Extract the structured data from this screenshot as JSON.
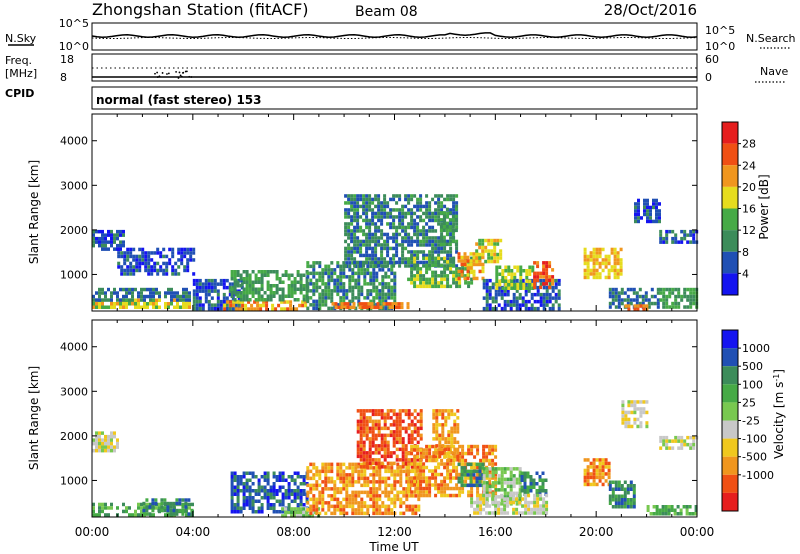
{
  "header": {
    "station": "Zhongshan Station (fitACF)",
    "beam": "Beam 08",
    "date": "28/Oct/2016"
  },
  "top_panels": {
    "nsky_label": "N.Sky",
    "nsky_ticks": [
      "10^5",
      "10^0"
    ],
    "nsearch_ticks": [
      "10^5",
      "10^0"
    ],
    "nsearch_label": "N.Search",
    "freq_label": "Freq.",
    "freq_unit": "[MHz]",
    "freq_ticks": [
      "18",
      "8"
    ],
    "nave_ticks": [
      "60",
      "0"
    ],
    "nave_label": "Nave",
    "cpid_label": "CPID",
    "cpid_text": "normal (fast stereo) 153"
  },
  "colors": {
    "power": [
      "#1414f0",
      "#2050b4",
      "#3c8c5a",
      "#46aa46",
      "#e6dc1e",
      "#f0961e",
      "#f05014",
      "#e61e1e"
    ],
    "velocity": [
      "#e61e1e",
      "#f05014",
      "#f0961e",
      "#f0c81e",
      "#c8c8c8",
      "#78c850",
      "#46aa46",
      "#3c8c5a",
      "#2050b4",
      "#1414f0"
    ]
  },
  "chart_data": [
    {
      "type": "heatmap",
      "panel": "power",
      "ylabel": "Slant Range [km]",
      "colorbar_label": "Power [dB]",
      "colorbar_ticks": [
        "28",
        "24",
        "20",
        "16",
        "12",
        "8",
        "4"
      ],
      "colorbar_range": [
        0,
        32
      ],
      "x_ticks": [
        "00:00",
        "04:00",
        "08:00",
        "12:00",
        "16:00",
        "20:00",
        "00:00"
      ],
      "x_range_hours": [
        0,
        24
      ],
      "y_ticks": [
        "1000",
        "2000",
        "3000",
        "4000"
      ],
      "y_range": [
        180,
        4600
      ],
      "regions": [
        {
          "t": [
            0.0,
            3.9
          ],
          "r": [
            240,
            460
          ],
          "v": 18
        },
        {
          "t": [
            0.0,
            3.9
          ],
          "r": [
            460,
            700
          ],
          "v": 8
        },
        {
          "t": [
            0.0,
            1.2
          ],
          "r": [
            1600,
            2000
          ],
          "v": 6
        },
        {
          "t": [
            1.0,
            4.0
          ],
          "r": [
            1000,
            1600
          ],
          "v": 5
        },
        {
          "t": [
            4.0,
            6.0
          ],
          "r": [
            240,
            900
          ],
          "v": 6
        },
        {
          "t": [
            5.2,
            8.5
          ],
          "r": [
            240,
            420
          ],
          "v": 22
        },
        {
          "t": [
            5.5,
            8.5
          ],
          "r": [
            420,
            1100
          ],
          "v": 12
        },
        {
          "t": [
            8.5,
            12.0
          ],
          "r": [
            240,
            1300
          ],
          "v": 10
        },
        {
          "t": [
            9.5,
            12.5
          ],
          "r": [
            240,
            380
          ],
          "v": 24
        },
        {
          "t": [
            10.0,
            14.5
          ],
          "r": [
            1200,
            2800
          ],
          "v": 9
        },
        {
          "t": [
            12.5,
            15.0
          ],
          "r": [
            700,
            1400
          ],
          "v": 14
        },
        {
          "t": [
            13.8,
            14.5
          ],
          "r": [
            1700,
            2500
          ],
          "v": 12
        },
        {
          "t": [
            14.5,
            15.5
          ],
          "r": [
            900,
            1500
          ],
          "v": 22
        },
        {
          "t": [
            15.2,
            16.2
          ],
          "r": [
            1300,
            1800
          ],
          "v": 18
        },
        {
          "t": [
            15.5,
            18.5
          ],
          "r": [
            240,
            900
          ],
          "v": 6
        },
        {
          "t": [
            16.0,
            17.5
          ],
          "r": [
            700,
            1200
          ],
          "v": 16
        },
        {
          "t": [
            17.5,
            18.3
          ],
          "r": [
            700,
            1300
          ],
          "v": 26
        },
        {
          "t": [
            19.5,
            21.0
          ],
          "r": [
            900,
            1600
          ],
          "v": 20
        },
        {
          "t": [
            20.5,
            22.5
          ],
          "r": [
            240,
            700
          ],
          "v": 8
        },
        {
          "t": [
            21.0,
            22.0
          ],
          "r": [
            240,
            330
          ],
          "v": 24
        },
        {
          "t": [
            22.5,
            24.0
          ],
          "r": [
            240,
            700
          ],
          "v": 12
        },
        {
          "t": [
            21.5,
            22.5
          ],
          "r": [
            2200,
            2700
          ],
          "v": 5
        },
        {
          "t": [
            22.5,
            24.0
          ],
          "r": [
            1700,
            2000
          ],
          "v": 6
        }
      ]
    },
    {
      "type": "heatmap",
      "panel": "velocity",
      "ylabel": "Slant Range [km]",
      "colorbar_label": "Velocity [m s^-1]",
      "colorbar_ticks": [
        "1000",
        "500",
        "100",
        "25",
        "-25",
        "-100",
        "-500",
        "-1000"
      ],
      "x_ticks": [
        "00:00",
        "04:00",
        "08:00",
        "12:00",
        "16:00",
        "20:00",
        "00:00"
      ],
      "xlabel": "Time UT",
      "x_range_hours": [
        0,
        24
      ],
      "y_ticks": [
        "1000",
        "2000",
        "3000",
        "4000"
      ],
      "y_range": [
        180,
        4600
      ],
      "regions": [
        {
          "t": [
            0.0,
            4.0
          ],
          "r": [
            240,
            500
          ],
          "v": 6
        },
        {
          "t": [
            0.0,
            1.0
          ],
          "r": [
            1700,
            2100
          ],
          "v": 4
        },
        {
          "t": [
            2.0,
            4.0
          ],
          "r": [
            240,
            600
          ],
          "v": 7
        },
        {
          "t": [
            5.5,
            8.5
          ],
          "r": [
            300,
            1200
          ],
          "v": 8
        },
        {
          "t": [
            7.5,
            9.0
          ],
          "r": [
            240,
            400
          ],
          "v": 5
        },
        {
          "t": [
            8.5,
            13.0
          ],
          "r": [
            240,
            1400
          ],
          "v": 2
        },
        {
          "t": [
            10.5,
            13.0
          ],
          "r": [
            1300,
            2600
          ],
          "v": 1
        },
        {
          "t": [
            12.5,
            16.0
          ],
          "r": [
            700,
            1800
          ],
          "v": 2
        },
        {
          "t": [
            13.5,
            14.5
          ],
          "r": [
            1500,
            2600
          ],
          "v": 2
        },
        {
          "t": [
            14.5,
            15.5
          ],
          "r": [
            900,
            1400
          ],
          "v": 7
        },
        {
          "t": [
            15.5,
            17.0
          ],
          "r": [
            500,
            1300
          ],
          "v": 5
        },
        {
          "t": [
            17.0,
            18.0
          ],
          "r": [
            700,
            1200
          ],
          "v": 7
        },
        {
          "t": [
            15.0,
            18.0
          ],
          "r": [
            240,
            700
          ],
          "v": 4
        },
        {
          "t": [
            19.5,
            20.5
          ],
          "r": [
            900,
            1500
          ],
          "v": 2
        },
        {
          "t": [
            20.5,
            21.5
          ],
          "r": [
            400,
            1000
          ],
          "v": 7
        },
        {
          "t": [
            21.0,
            22.0
          ],
          "r": [
            2200,
            2800
          ],
          "v": 4
        },
        {
          "t": [
            22.0,
            24.0
          ],
          "r": [
            240,
            450
          ],
          "v": 6
        },
        {
          "t": [
            22.5,
            24.0
          ],
          "r": [
            1700,
            2000
          ],
          "v": 4
        }
      ]
    }
  ]
}
